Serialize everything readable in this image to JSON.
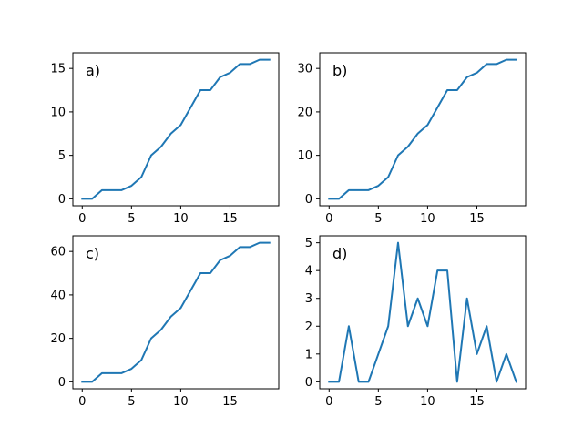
{
  "chart_data": [
    {
      "type": "line",
      "title": "",
      "annotation": "a)",
      "color": "#1f77b4",
      "x": [
        0,
        1,
        2,
        3,
        4,
        5,
        6,
        7,
        8,
        9,
        10,
        11,
        12,
        13,
        14,
        15,
        16,
        17,
        18,
        19
      ],
      "values": [
        0,
        0,
        1,
        1,
        1,
        1.5,
        2.5,
        5,
        6,
        7.5,
        8.5,
        10.5,
        12.5,
        12.5,
        14,
        14.5,
        15.5,
        15.5,
        16,
        16
      ],
      "xlim": [
        -0.95,
        19.95
      ],
      "ylim": [
        -0.8,
        16.8
      ],
      "xticks": [
        0,
        5,
        10,
        15
      ],
      "yticks": [
        0,
        5,
        10,
        15
      ],
      "xticklabels": [
        "0",
        "5",
        "10",
        "15"
      ],
      "yticklabels": [
        "0",
        "5",
        "10",
        "15"
      ]
    },
    {
      "type": "line",
      "title": "",
      "annotation": "b)",
      "color": "#1f77b4",
      "x": [
        0,
        1,
        2,
        3,
        4,
        5,
        6,
        7,
        8,
        9,
        10,
        11,
        12,
        13,
        14,
        15,
        16,
        17,
        18,
        19
      ],
      "values": [
        0,
        0,
        2,
        2,
        2,
        3,
        5,
        10,
        12,
        15,
        17,
        21,
        25,
        25,
        28,
        29,
        31,
        31,
        32,
        32
      ],
      "xlim": [
        -0.95,
        19.95
      ],
      "ylim": [
        -1.6,
        33.6
      ],
      "xticks": [
        0,
        5,
        10,
        15
      ],
      "yticks": [
        0,
        10,
        20,
        30
      ],
      "xticklabels": [
        "0",
        "5",
        "10",
        "15"
      ],
      "yticklabels": [
        "0",
        "10",
        "20",
        "30"
      ]
    },
    {
      "type": "line",
      "title": "",
      "annotation": "c)",
      "color": "#1f77b4",
      "x": [
        0,
        1,
        2,
        3,
        4,
        5,
        6,
        7,
        8,
        9,
        10,
        11,
        12,
        13,
        14,
        15,
        16,
        17,
        18,
        19
      ],
      "values": [
        0,
        0,
        4,
        4,
        4,
        6,
        10,
        20,
        24,
        30,
        34,
        42,
        50,
        50,
        56,
        58,
        62,
        62,
        64,
        64
      ],
      "xlim": [
        -0.95,
        19.95
      ],
      "ylim": [
        -3.2,
        67.2
      ],
      "xticks": [
        0,
        5,
        10,
        15
      ],
      "yticks": [
        0,
        20,
        40,
        60
      ],
      "xticklabels": [
        "0",
        "5",
        "10",
        "15"
      ],
      "yticklabels": [
        "0",
        "20",
        "40",
        "60"
      ]
    },
    {
      "type": "line",
      "title": "",
      "annotation": "d)",
      "color": "#1f77b4",
      "x": [
        0,
        1,
        2,
        3,
        4,
        5,
        6,
        7,
        8,
        9,
        10,
        11,
        12,
        13,
        14,
        15,
        16,
        17,
        18,
        19
      ],
      "values": [
        0,
        0,
        2,
        0,
        0,
        1,
        2,
        5,
        2,
        3,
        2,
        4,
        4,
        0,
        3,
        1,
        2,
        0,
        1,
        0
      ],
      "xlim": [
        -0.95,
        19.95
      ],
      "ylim": [
        -0.25,
        5.25
      ],
      "xticks": [
        0,
        5,
        10,
        15
      ],
      "yticks": [
        0,
        1,
        2,
        3,
        4,
        5
      ],
      "xticklabels": [
        "0",
        "5",
        "10",
        "15"
      ],
      "yticklabels": [
        "0",
        "1",
        "2",
        "3",
        "4",
        "5"
      ]
    }
  ]
}
